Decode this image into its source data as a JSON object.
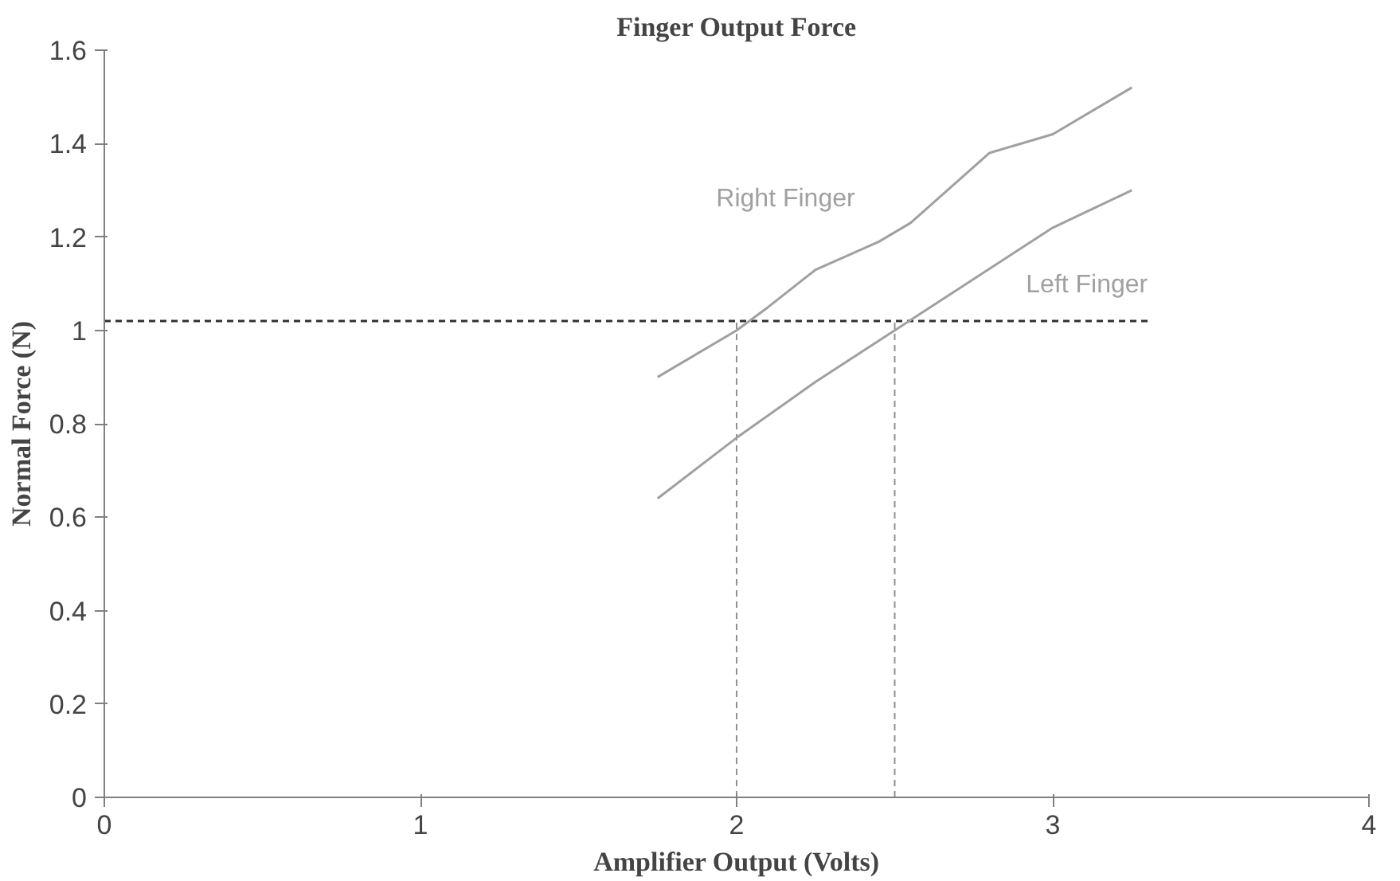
{
  "chart_data": {
    "type": "line",
    "title": "Finger Output Force",
    "xlabel": "Amplifier Output (Volts)",
    "ylabel": "Normal Force (N)",
    "xlim": [
      0,
      4
    ],
    "xticks": [
      0,
      1,
      2,
      3,
      4
    ],
    "ylim": [
      0,
      1.6
    ],
    "yticks": [
      0,
      0.2,
      0.4,
      0.6,
      0.8,
      1,
      1.2,
      1.4,
      1.6
    ],
    "grid": false,
    "legend": false,
    "series": [
      {
        "name": "Right Finger",
        "color": "#a0a0a0",
        "x": [
          1.75,
          2.0,
          2.1,
          2.25,
          2.45,
          2.55,
          2.8,
          3.0,
          3.25
        ],
        "values": [
          0.9,
          1.0,
          1.05,
          1.13,
          1.19,
          1.23,
          1.38,
          1.42,
          1.52
        ]
      },
      {
        "name": "Left Finger",
        "color": "#a0a0a0",
        "x": [
          1.75,
          2.0,
          2.25,
          2.5,
          2.75,
          3.0,
          3.25
        ],
        "values": [
          0.64,
          0.77,
          0.89,
          1.0,
          1.11,
          1.22,
          1.3
        ]
      }
    ],
    "ref_lines": [
      {
        "axis": "y",
        "value": 1.02,
        "color": "#303030",
        "line_style": "dashed"
      },
      {
        "axis": "x",
        "value": 2.0,
        "color": "#909090",
        "line_style": "dashed"
      },
      {
        "axis": "x",
        "value": 2.5,
        "color": "#909090",
        "line_style": "dashed"
      }
    ]
  }
}
